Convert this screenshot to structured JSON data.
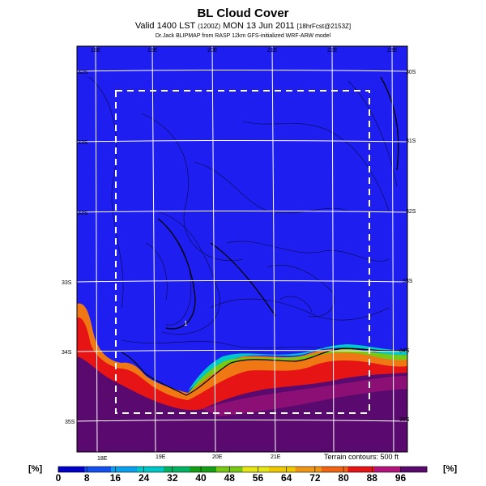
{
  "header": {
    "title": "BL Cloud Cover",
    "valid_line_main": "Valid 1400 LST",
    "valid_line_z": "(1200Z)",
    "valid_line_date": "MON 13 Jun 2011",
    "valid_line_fcst": "[18hrFcst@2153Z]",
    "source_line": "Dr.Jack BLIPMAP from RASP 12km GFS-initialized WRF-ARW model"
  },
  "map": {
    "top_lon_labels": [
      "18E",
      "19E",
      "20E",
      "21E",
      "22E",
      "23E"
    ],
    "bottom_lon_labels": [
      "18E",
      "19E",
      "20E",
      "21E"
    ],
    "left_lat_labels": [
      "32S",
      "33S",
      "33S",
      "33S",
      "34S",
      "35S"
    ],
    "right_lat_labels": [
      "30S",
      "31S",
      "32S",
      "33S",
      "34S",
      "35S"
    ],
    "spot_label": "1",
    "terrain_note": "Terrain contours: 500 ft",
    "colors": {
      "ocean_high": "#5a0a6e",
      "land_low": "#1e1ef0",
      "grid": "#ffffff",
      "box": "#ffffff"
    }
  },
  "colorbar": {
    "unit_left": "[%]",
    "unit_right": "[%]",
    "ticks": [
      "0",
      "8",
      "16",
      "24",
      "32",
      "40",
      "48",
      "56",
      "64",
      "72",
      "80",
      "88",
      "96"
    ],
    "colors": [
      "#0000c8",
      "#1450f0",
      "#0aa0f0",
      "#00c8c8",
      "#00b464",
      "#14a014",
      "#78c814",
      "#e6e614",
      "#f0c800",
      "#f09614",
      "#f06414",
      "#e61414",
      "#b4147a",
      "#5a0a6e"
    ]
  }
}
